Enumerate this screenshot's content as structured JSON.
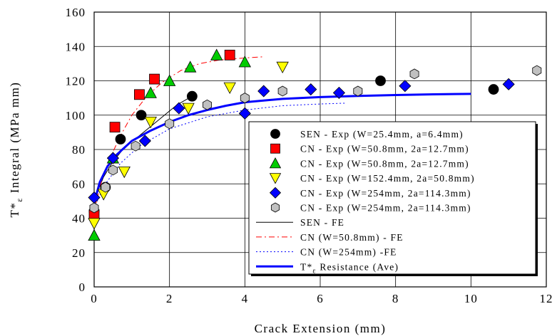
{
  "chart_data": {
    "type": "scatter",
    "xlabel": "Crack Extension (mm)",
    "ylabel_main": "T*",
    "ylabel_sub": "ε",
    "ylabel_rest": " Integral (MPa mm)",
    "xlim": [
      0,
      12
    ],
    "ylim": [
      0,
      160
    ],
    "xticks": [
      0,
      2,
      4,
      6,
      8,
      10,
      12
    ],
    "yticks": [
      0,
      20,
      40,
      60,
      80,
      100,
      120,
      140,
      160
    ],
    "grid": true,
    "legend_position": "bottom-right",
    "series": [
      {
        "name": "SEN - Exp (W=25.4mm, a=6.4mm)",
        "kind": "points",
        "marker": "circle",
        "color": "#000000",
        "stroke": "#000000",
        "points": [
          [
            0,
            44
          ],
          [
            0.3,
            58
          ],
          [
            0.7,
            86
          ],
          [
            1.25,
            100
          ],
          [
            2.6,
            111
          ],
          [
            7.6,
            120
          ],
          [
            10.6,
            115
          ]
        ]
      },
      {
        "name": "CN - Exp (W=50.8mm, 2a=12.7mm)",
        "kind": "points",
        "marker": "square",
        "color": "#ff0000",
        "stroke": "#000000",
        "points": [
          [
            0,
            42
          ],
          [
            0.55,
            93
          ],
          [
            1.2,
            112
          ],
          [
            1.6,
            121
          ],
          [
            3.6,
            135
          ]
        ]
      },
      {
        "name": "CN - Exp (W=50.8mm, 2a=12.7mm)",
        "kind": "points",
        "marker": "triangle-up",
        "color": "#00cc00",
        "stroke": "#000000",
        "points": [
          [
            0,
            30
          ],
          [
            0.5,
            75
          ],
          [
            1.5,
            113
          ],
          [
            2.0,
            120
          ],
          [
            2.55,
            128
          ],
          [
            3.25,
            135
          ],
          [
            4.0,
            131
          ]
        ]
      },
      {
        "name": "CN - Exp (W=152.4mm, 2a=50.8mm)",
        "kind": "points",
        "marker": "triangle-down",
        "color": "#ffff00",
        "stroke": "#000000",
        "points": [
          [
            0,
            37
          ],
          [
            0.25,
            54
          ],
          [
            0.8,
            67
          ],
          [
            1.5,
            96
          ],
          [
            2.5,
            104
          ],
          [
            3.6,
            116
          ],
          [
            5.0,
            128
          ]
        ]
      },
      {
        "name": "CN - Exp (W=254mm, 2a=114.3mm)",
        "kind": "points",
        "marker": "diamond",
        "color": "#0000ff",
        "stroke": "#000000",
        "points": [
          [
            0,
            52
          ],
          [
            0.5,
            75
          ],
          [
            1.35,
            85
          ],
          [
            2.25,
            104
          ],
          [
            4.0,
            101
          ],
          [
            4.5,
            114
          ],
          [
            5.75,
            115
          ],
          [
            6.5,
            113
          ],
          [
            8.25,
            117
          ],
          [
            11.0,
            118
          ]
        ]
      },
      {
        "name": "CN - Exp (W=254mm, 2a=114.3mm)",
        "kind": "points",
        "marker": "hexagon",
        "color": "#c0c0c0",
        "stroke": "#000000",
        "points": [
          [
            0,
            46
          ],
          [
            0.3,
            58
          ],
          [
            0.5,
            68
          ],
          [
            1.1,
            82
          ],
          [
            2.0,
            95
          ],
          [
            3.0,
            106
          ],
          [
            4.0,
            110
          ],
          [
            5.0,
            114
          ],
          [
            7.0,
            114
          ],
          [
            8.5,
            124
          ],
          [
            11.75,
            126
          ]
        ]
      },
      {
        "name": "SEN - FE",
        "kind": "line",
        "color": "#000000",
        "dash": "",
        "width": 1,
        "points": [
          [
            0,
            46
          ],
          [
            0.1,
            56
          ],
          [
            0.25,
            64
          ],
          [
            0.5,
            73
          ],
          [
            0.8,
            81
          ],
          [
            1.2,
            88
          ],
          [
            1.7,
            97
          ],
          [
            2.2,
            106
          ],
          [
            2.6,
            111
          ]
        ]
      },
      {
        "name": "CN (W=50.8mm) - FE",
        "kind": "line",
        "color": "#ff0000",
        "dash": "8,4,2,4",
        "width": 1,
        "points": [
          [
            0,
            44
          ],
          [
            0.2,
            62
          ],
          [
            0.4,
            74
          ],
          [
            0.7,
            88
          ],
          [
            1.0,
            100
          ],
          [
            1.4,
            111
          ],
          [
            1.8,
            119
          ],
          [
            2.3,
            126
          ],
          [
            2.8,
            130
          ],
          [
            3.3,
            132
          ],
          [
            3.8,
            133
          ],
          [
            4.5,
            134
          ]
        ]
      },
      {
        "name": "CN (W=254mm) -FE",
        "kind": "line",
        "color": "#0000ff",
        "dash": "2,3",
        "width": 1,
        "points": [
          [
            0,
            46
          ],
          [
            0.3,
            60
          ],
          [
            0.7,
            72
          ],
          [
            1.2,
            82
          ],
          [
            2.0,
            92
          ],
          [
            3.0,
            99
          ],
          [
            4.0,
            103
          ],
          [
            5.0,
            105.5
          ],
          [
            6.0,
            106.5
          ],
          [
            6.7,
            107
          ]
        ]
      },
      {
        "name": "T*ε Resistance (Ave)",
        "legend_main": "T*",
        "legend_sub": "ε",
        "legend_rest": " Resistance (Ave)",
        "kind": "line",
        "color": "#0000ff",
        "dash": "",
        "width": 3,
        "points": [
          [
            0,
            49
          ],
          [
            0.15,
            61
          ],
          [
            0.35,
            70
          ],
          [
            0.6,
            77
          ],
          [
            1.0,
            85
          ],
          [
            1.5,
            91
          ],
          [
            2.0,
            96
          ],
          [
            2.5,
            100
          ],
          [
            3.0,
            103
          ],
          [
            3.5,
            105.5
          ],
          [
            4.0,
            107.5
          ],
          [
            5.0,
            109.5
          ],
          [
            6.0,
            110.5
          ],
          [
            7.0,
            111.2
          ],
          [
            8.0,
            111.7
          ],
          [
            9.0,
            112.1
          ],
          [
            10.0,
            112.4
          ]
        ]
      }
    ],
    "legend_order": [
      0,
      1,
      2,
      3,
      4,
      5,
      6,
      7,
      8,
      9
    ]
  }
}
